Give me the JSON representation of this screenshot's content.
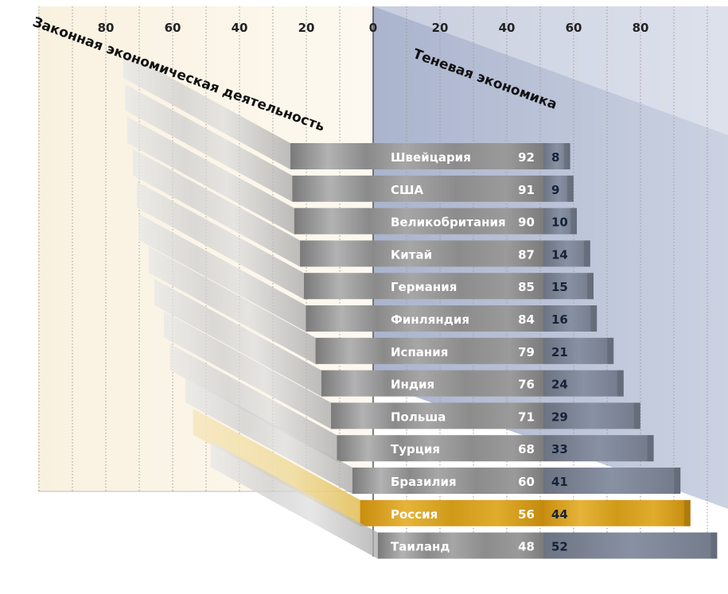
{
  "chart_data": {
    "type": "bar",
    "orientation": "horizontal-diverging",
    "left_axis_title": "Законная экономическая деятельность",
    "right_axis_title": "Теневая экономика",
    "left_ticks": [
      "80",
      "60",
      "40",
      "20"
    ],
    "center_tick": "0",
    "right_ticks": [
      "20",
      "40",
      "60",
      "80"
    ],
    "xlim": [
      0,
      100
    ],
    "categories": [
      "Швейцария",
      "США",
      "Великобритания",
      "Китай",
      "Германия",
      "Финляндия",
      "Испания",
      "Индия",
      "Польша",
      "Турция",
      "Бразилия",
      "Россия",
      "Таиланд"
    ],
    "series": [
      {
        "values": [
          92,
          91,
          90,
          87,
          85,
          84,
          79,
          76,
          71,
          68,
          60,
          56,
          48
        ]
      },
      {
        "values": [
          8,
          9,
          10,
          14,
          15,
          16,
          21,
          24,
          29,
          33,
          41,
          44,
          52
        ]
      }
    ],
    "highlight": "Россия",
    "grid": true,
    "colors": {
      "legal_bar": "#8e8e8e",
      "shadow_bar": "#7c8494",
      "highlight_bar": "#d6a21a",
      "shadow_panel": "#c3cbdd",
      "legal_panel": "#f8f1e2"
    }
  }
}
